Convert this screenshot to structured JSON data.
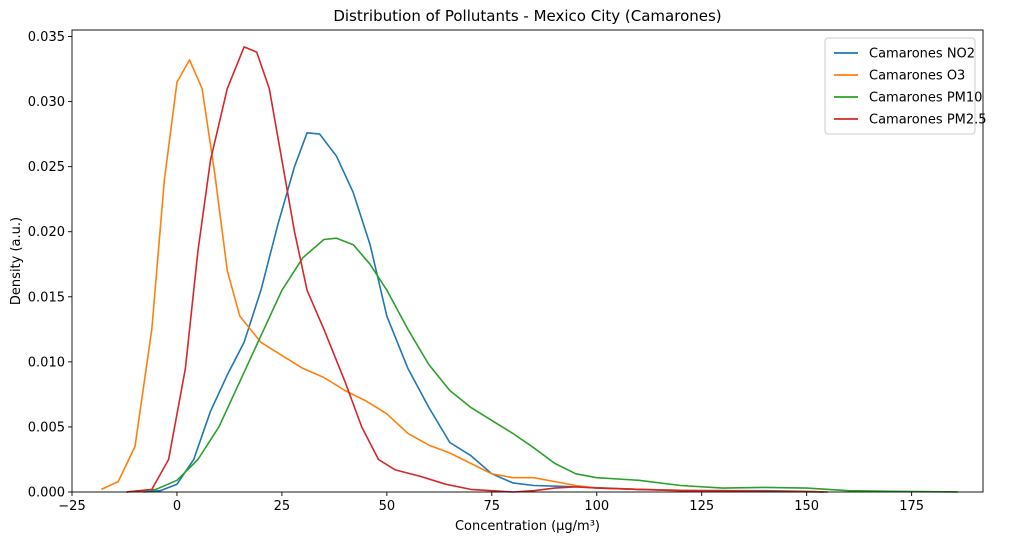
{
  "chart_data": {
    "type": "line",
    "title": "Distribution of Pollutants - Mexico City (Camarones)",
    "xlabel": "Concentration (µg/m³)",
    "ylabel": "Density (a.u.)",
    "xlim": [
      -25,
      192
    ],
    "ylim": [
      0,
      0.0355
    ],
    "xticks": [
      -25,
      0,
      25,
      50,
      75,
      100,
      125,
      150,
      175
    ],
    "xtick_labels": [
      "−25",
      "0",
      "25",
      "50",
      "75",
      "100",
      "125",
      "150",
      "175"
    ],
    "yticks": [
      0,
      0.005,
      0.01,
      0.015,
      0.02,
      0.025,
      0.03,
      0.035
    ],
    "ytick_labels": [
      "0.000",
      "0.005",
      "0.010",
      "0.015",
      "0.020",
      "0.025",
      "0.030",
      "0.035"
    ],
    "grid": false,
    "legend_position": "top-right",
    "series": [
      {
        "name": "Camarones NO2",
        "color": "#1f77b4",
        "points": [
          [
            -8,
            0
          ],
          [
            -4,
            0.0001
          ],
          [
            0,
            0.0006
          ],
          [
            4,
            0.0025
          ],
          [
            8,
            0.0062
          ],
          [
            12,
            0.009
          ],
          [
            16,
            0.0115
          ],
          [
            20,
            0.0155
          ],
          [
            24,
            0.0205
          ],
          [
            28,
            0.025
          ],
          [
            31,
            0.0276
          ],
          [
            34,
            0.0275
          ],
          [
            38,
            0.0258
          ],
          [
            42,
            0.023
          ],
          [
            46,
            0.019
          ],
          [
            50,
            0.0135
          ],
          [
            55,
            0.0095
          ],
          [
            60,
            0.0065
          ],
          [
            65,
            0.0038
          ],
          [
            70,
            0.0028
          ],
          [
            75,
            0.0014
          ],
          [
            80,
            0.0007
          ],
          [
            85,
            0.0005
          ],
          [
            95,
            0.0004
          ],
          [
            110,
            0.0002
          ],
          [
            125,
            0.0001
          ],
          [
            140,
            0.0001
          ],
          [
            150,
            5e-05
          ],
          [
            155,
            0
          ]
        ]
      },
      {
        "name": "Camarones O3",
        "color": "#ff7f0e",
        "points": [
          [
            -18,
            0.0002
          ],
          [
            -14,
            0.0008
          ],
          [
            -10,
            0.0035
          ],
          [
            -6,
            0.0125
          ],
          [
            -3,
            0.024
          ],
          [
            0,
            0.0315
          ],
          [
            3,
            0.0332
          ],
          [
            6,
            0.031
          ],
          [
            9,
            0.0245
          ],
          [
            12,
            0.017
          ],
          [
            15,
            0.0135
          ],
          [
            20,
            0.0115
          ],
          [
            25,
            0.0105
          ],
          [
            30,
            0.0095
          ],
          [
            35,
            0.0088
          ],
          [
            40,
            0.0078
          ],
          [
            45,
            0.007
          ],
          [
            50,
            0.006
          ],
          [
            55,
            0.0045
          ],
          [
            60,
            0.0036
          ],
          [
            65,
            0.003
          ],
          [
            70,
            0.0022
          ],
          [
            75,
            0.0014
          ],
          [
            80,
            0.0011
          ],
          [
            85,
            0.0011
          ],
          [
            90,
            0.0008
          ],
          [
            95,
            0.0005
          ],
          [
            100,
            0.0003
          ],
          [
            110,
            0.0002
          ],
          [
            125,
            0.0001
          ],
          [
            140,
            5e-05
          ],
          [
            150,
            3e-05
          ],
          [
            155,
            0
          ]
        ]
      },
      {
        "name": "Camarones PM10",
        "color": "#2ca02c",
        "points": [
          [
            -12,
            0
          ],
          [
            -5,
            0.0002
          ],
          [
            0,
            0.0009
          ],
          [
            5,
            0.0025
          ],
          [
            10,
            0.005
          ],
          [
            15,
            0.0085
          ],
          [
            20,
            0.012
          ],
          [
            25,
            0.0155
          ],
          [
            30,
            0.018
          ],
          [
            35,
            0.0194
          ],
          [
            38,
            0.0195
          ],
          [
            42,
            0.019
          ],
          [
            46,
            0.0175
          ],
          [
            50,
            0.0155
          ],
          [
            55,
            0.0125
          ],
          [
            60,
            0.0098
          ],
          [
            65,
            0.0078
          ],
          [
            70,
            0.0065
          ],
          [
            75,
            0.0055
          ],
          [
            80,
            0.0045
          ],
          [
            85,
            0.0034
          ],
          [
            90,
            0.0022
          ],
          [
            95,
            0.0014
          ],
          [
            100,
            0.0011
          ],
          [
            110,
            0.0009
          ],
          [
            120,
            0.0005
          ],
          [
            130,
            0.0003
          ],
          [
            140,
            0.00035
          ],
          [
            150,
            0.0003
          ],
          [
            160,
            0.0001
          ],
          [
            170,
            5e-05
          ],
          [
            186,
            1e-05
          ]
        ]
      },
      {
        "name": "Camarones PM2.5",
        "color": "#d62728",
        "points": [
          [
            -12,
            0
          ],
          [
            -6,
            0.0002
          ],
          [
            -2,
            0.0025
          ],
          [
            2,
            0.0095
          ],
          [
            5,
            0.0185
          ],
          [
            8,
            0.0255
          ],
          [
            12,
            0.031
          ],
          [
            16,
            0.0342
          ],
          [
            19,
            0.0338
          ],
          [
            22,
            0.031
          ],
          [
            25,
            0.0255
          ],
          [
            28,
            0.02
          ],
          [
            31,
            0.0155
          ],
          [
            35,
            0.0125
          ],
          [
            40,
            0.0085
          ],
          [
            44,
            0.005
          ],
          [
            48,
            0.0025
          ],
          [
            52,
            0.0017
          ],
          [
            58,
            0.0012
          ],
          [
            64,
            0.0006
          ],
          [
            70,
            0.0002
          ],
          [
            75,
            0.0001
          ],
          [
            80,
            0
          ],
          [
            85,
            0.0001
          ],
          [
            90,
            0.0003
          ],
          [
            95,
            0.0004
          ],
          [
            100,
            0.0003
          ],
          [
            110,
            0.0002
          ],
          [
            120,
            0.0001
          ],
          [
            130,
            0.0001
          ],
          [
            140,
            5e-05
          ],
          [
            154,
            0
          ]
        ]
      }
    ]
  }
}
